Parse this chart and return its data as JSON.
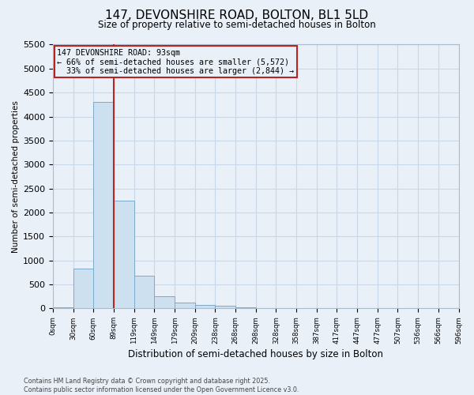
{
  "title_line1": "147, DEVONSHIRE ROAD, BOLTON, BL1 5LD",
  "title_line2": "Size of property relative to semi-detached houses in Bolton",
  "xlabel": "Distribution of semi-detached houses by size in Bolton",
  "ylabel": "Number of semi-detached properties",
  "bin_labels": [
    "0sqm",
    "30sqm",
    "60sqm",
    "89sqm",
    "119sqm",
    "149sqm",
    "179sqm",
    "209sqm",
    "238sqm",
    "268sqm",
    "298sqm",
    "328sqm",
    "358sqm",
    "387sqm",
    "417sqm",
    "447sqm",
    "477sqm",
    "507sqm",
    "536sqm",
    "566sqm",
    "596sqm"
  ],
  "n_bins": 20,
  "values": [
    30,
    830,
    4300,
    2250,
    680,
    250,
    130,
    70,
    50,
    30,
    10,
    0,
    0,
    0,
    0,
    0,
    0,
    0,
    0,
    0
  ],
  "bar_color": "#cce0f0",
  "bar_edge_color": "#7aaacc",
  "property_bin": 3,
  "property_label": "147 DEVONSHIRE ROAD: 93sqm",
  "pct_smaller": 66,
  "pct_smaller_count": 5572,
  "pct_larger": 33,
  "pct_larger_count": 2844,
  "vline_color": "#bb2222",
  "ylim": [
    0,
    5500
  ],
  "yticks": [
    0,
    500,
    1000,
    1500,
    2000,
    2500,
    3000,
    3500,
    4000,
    4500,
    5000,
    5500
  ],
  "grid_color": "#c8d8e8",
  "background_color": "#eaf0f8",
  "footer_line1": "Contains HM Land Registry data © Crown copyright and database right 2025.",
  "footer_line2": "Contains public sector information licensed under the Open Government Licence v3.0."
}
